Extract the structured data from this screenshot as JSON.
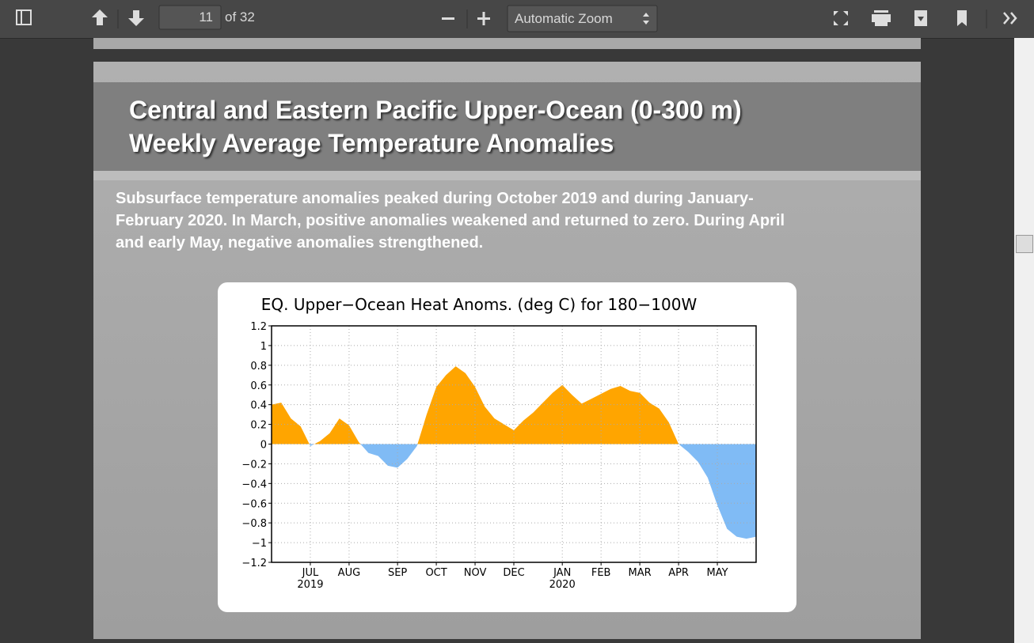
{
  "toolbar": {
    "page_number": "11",
    "page_count": "of 32",
    "zoom": "Automatic Zoom"
  },
  "slide": {
    "title_lines": [
      "Central and Eastern Pacific Upper-Ocean (0-300 m)",
      "Weekly Average Temperature Anomalies"
    ],
    "body_lines": [
      "Subsurface temperature anomalies peaked during October 2019 and during January-",
      "February 2020. In March, positive anomalies weakened and returned to zero. During April",
      "and early May, negative anomalies strengthened."
    ]
  },
  "chart_data": {
    "type": "area",
    "title": "EQ. Upper−Ocean Heat Anoms. (deg C) for 180−100W",
    "categories": [
      null,
      null,
      null,
      null,
      "JUL",
      null,
      null,
      null,
      "AUG",
      null,
      null,
      null,
      null,
      "SEP",
      null,
      null,
      null,
      "OCT",
      null,
      null,
      null,
      "NOV",
      null,
      null,
      null,
      "DEC",
      null,
      null,
      null,
      null,
      "JAN",
      null,
      null,
      null,
      "FEB",
      null,
      null,
      null,
      "MAR",
      null,
      null,
      null,
      "APR",
      null,
      null,
      null,
      "MAY",
      null,
      null,
      null,
      null
    ],
    "category_years": [
      null,
      null,
      null,
      null,
      "2019",
      null,
      null,
      null,
      null,
      null,
      null,
      null,
      null,
      null,
      null,
      null,
      null,
      null,
      null,
      null,
      null,
      null,
      null,
      null,
      null,
      null,
      null,
      null,
      null,
      null,
      "2020",
      null,
      null,
      null,
      null,
      null,
      null,
      null,
      null,
      null,
      null,
      null,
      null,
      null,
      null,
      null,
      null,
      null,
      null,
      null,
      null
    ],
    "values": [
      0.4,
      0.42,
      0.26,
      0.18,
      -0.02,
      0.03,
      0.11,
      0.26,
      0.19,
      0.02,
      -0.09,
      -0.12,
      -0.22,
      -0.24,
      -0.15,
      -0.02,
      0.3,
      0.58,
      0.7,
      0.79,
      0.72,
      0.58,
      0.38,
      0.26,
      0.2,
      0.14,
      0.24,
      0.32,
      0.42,
      0.52,
      0.6,
      0.5,
      0.41,
      0.46,
      0.51,
      0.56,
      0.59,
      0.54,
      0.52,
      0.42,
      0.36,
      0.22,
      0,
      -0.08,
      -0.18,
      -0.34,
      -0.62,
      -0.86,
      -0.94,
      -0.96,
      -0.94
    ],
    "positive_color": "#ffa500",
    "negative_color": "#80bbf5",
    "ylim": [
      -1.2,
      1.2
    ],
    "yticks": [
      {
        "value": -1.2,
        "label": "−1.2"
      },
      {
        "value": -1,
        "label": "−1"
      },
      {
        "value": -0.8,
        "label": "−0.8"
      },
      {
        "value": -0.6,
        "label": "−0.6"
      },
      {
        "value": -0.4,
        "label": "−0.4"
      },
      {
        "value": -0.2,
        "label": "−0.2"
      },
      0,
      0.2,
      0.4,
      0.6,
      0.8,
      1,
      1.2
    ],
    "grid": true
  }
}
